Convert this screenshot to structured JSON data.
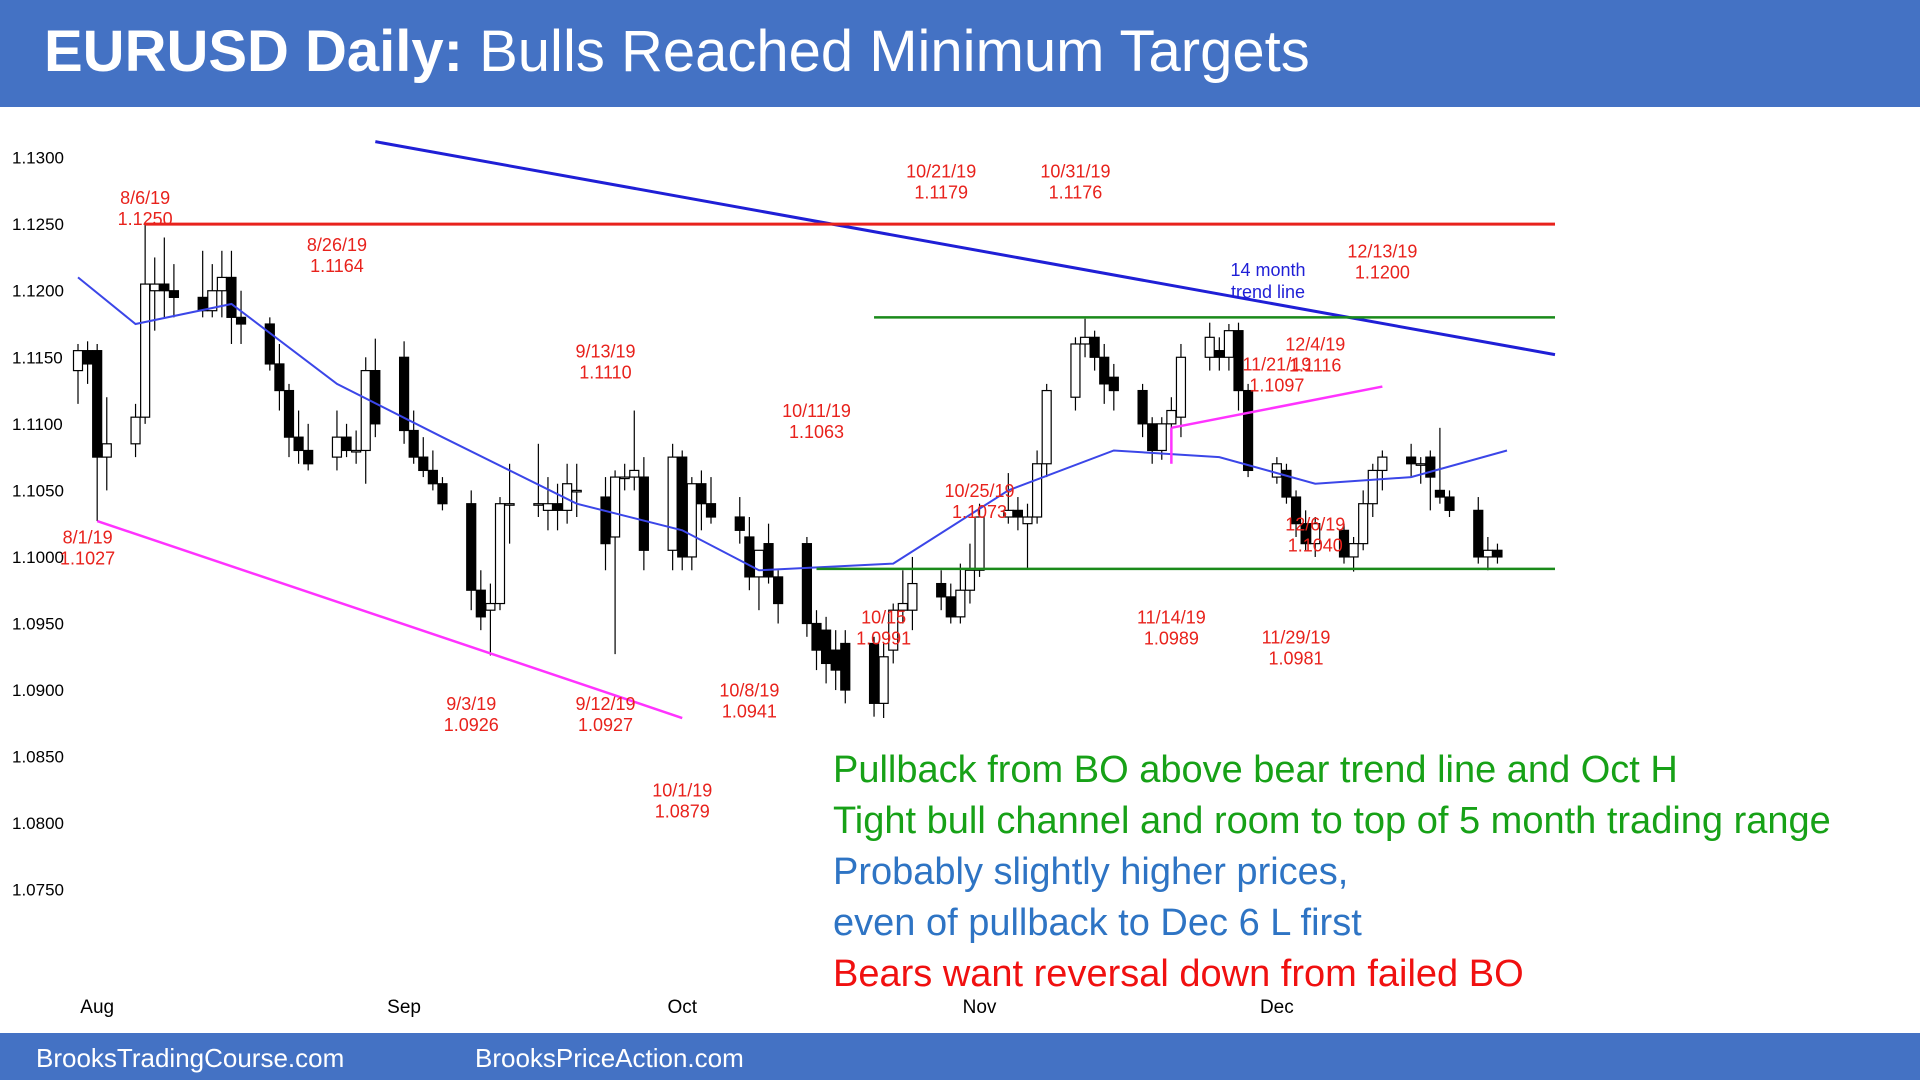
{
  "header": {
    "title_bold": "EURUSD Daily:",
    "title_rest": "Bulls Reached Minimum Targets"
  },
  "footer": {
    "left": "BrooksTradingCourse.com",
    "right": "BrooksPriceAction.com"
  },
  "colors": {
    "banner": "#4472c4",
    "annotation": "#e8221c",
    "trend_line": "#1f1fd6",
    "support_line": "#ff33ff",
    "range_line": "#1a8a1a",
    "ema": "#3b46e8",
    "green_text": "#17a117",
    "blue_text": "#2e74c4",
    "red_text": "#f01010"
  },
  "chart_data": {
    "type": "candlestick",
    "instrument": "EURUSD",
    "timeframe": "Daily",
    "ylim": [
      1.0725,
      1.132
    ],
    "xlim": [
      "2019-07-30",
      "2019-12-31"
    ],
    "y_ticks": [
      "1.1300",
      "1.1250",
      "1.1200",
      "1.1150",
      "1.1100",
      "1.1050",
      "1.1000",
      "1.0950",
      "1.0900",
      "1.0850",
      "1.0800",
      "1.0750"
    ],
    "x_ticks": [
      {
        "label": "Aug",
        "date": "2019-08-01"
      },
      {
        "label": "Sep",
        "date": "2019-09-02"
      },
      {
        "label": "Oct",
        "date": "2019-10-01"
      },
      {
        "label": "Nov",
        "date": "2019-11-01"
      },
      {
        "label": "Dec",
        "date": "2019-12-02"
      }
    ],
    "candles": [
      {
        "date": "2019-07-30",
        "o": 1.114,
        "h": 1.116,
        "l": 1.1115,
        "c": 1.1155
      },
      {
        "date": "2019-07-31",
        "o": 1.1155,
        "h": 1.1162,
        "l": 1.113,
        "c": 1.1145
      },
      {
        "date": "2019-08-01",
        "o": 1.1155,
        "h": 1.116,
        "l": 1.1027,
        "c": 1.1075
      },
      {
        "date": "2019-08-02",
        "o": 1.1075,
        "h": 1.112,
        "l": 1.105,
        "c": 1.1085
      },
      {
        "date": "2019-08-05",
        "o": 1.1085,
        "h": 1.1115,
        "l": 1.1075,
        "c": 1.1105
      },
      {
        "date": "2019-08-06",
        "o": 1.1105,
        "h": 1.125,
        "l": 1.11,
        "c": 1.1205
      },
      {
        "date": "2019-08-07",
        "o": 1.12,
        "h": 1.1225,
        "l": 1.117,
        "c": 1.1205
      },
      {
        "date": "2019-08-08",
        "o": 1.1205,
        "h": 1.124,
        "l": 1.118,
        "c": 1.12
      },
      {
        "date": "2019-08-09",
        "o": 1.12,
        "h": 1.122,
        "l": 1.118,
        "c": 1.1195
      },
      {
        "date": "2019-08-12",
        "o": 1.1195,
        "h": 1.123,
        "l": 1.118,
        "c": 1.1185
      },
      {
        "date": "2019-08-13",
        "o": 1.1185,
        "h": 1.122,
        "l": 1.118,
        "c": 1.12
      },
      {
        "date": "2019-08-14",
        "o": 1.12,
        "h": 1.123,
        "l": 1.118,
        "c": 1.121
      },
      {
        "date": "2019-08-15",
        "o": 1.121,
        "h": 1.123,
        "l": 1.116,
        "c": 1.118
      },
      {
        "date": "2019-08-16",
        "o": 1.118,
        "h": 1.12,
        "l": 1.116,
        "c": 1.1175
      },
      {
        "date": "2019-08-19",
        "o": 1.1175,
        "h": 1.118,
        "l": 1.114,
        "c": 1.1145
      },
      {
        "date": "2019-08-20",
        "o": 1.1145,
        "h": 1.116,
        "l": 1.111,
        "c": 1.1125
      },
      {
        "date": "2019-08-21",
        "o": 1.1125,
        "h": 1.113,
        "l": 1.1075,
        "c": 1.109
      },
      {
        "date": "2019-08-22",
        "o": 1.109,
        "h": 1.111,
        "l": 1.107,
        "c": 1.108
      },
      {
        "date": "2019-08-23",
        "o": 1.108,
        "h": 1.11,
        "l": 1.1065,
        "c": 1.107
      },
      {
        "date": "2019-08-26",
        "o": 1.1075,
        "h": 1.111,
        "l": 1.1065,
        "c": 1.109
      },
      {
        "date": "2019-08-27",
        "o": 1.109,
        "h": 1.11,
        "l": 1.1075,
        "c": 1.108
      },
      {
        "date": "2019-08-28",
        "o": 1.108,
        "h": 1.1095,
        "l": 1.107,
        "c": 1.108
      },
      {
        "date": "2019-08-29",
        "o": 1.108,
        "h": 1.115,
        "l": 1.1055,
        "c": 1.114
      },
      {
        "date": "2019-08-30",
        "o": 1.114,
        "h": 1.1164,
        "l": 1.109,
        "c": 1.11
      },
      {
        "date": "2019-09-02",
        "o": 1.115,
        "h": 1.1162,
        "l": 1.1085,
        "c": 1.1095
      },
      {
        "date": "2019-09-03",
        "o": 1.1095,
        "h": 1.111,
        "l": 1.107,
        "c": 1.1075
      },
      {
        "date": "2019-09-04",
        "o": 1.1075,
        "h": 1.109,
        "l": 1.106,
        "c": 1.1065
      },
      {
        "date": "2019-09-05",
        "o": 1.1065,
        "h": 1.108,
        "l": 1.105,
        "c": 1.1055
      },
      {
        "date": "2019-09-06",
        "o": 1.1055,
        "h": 1.106,
        "l": 1.1035,
        "c": 1.104
      },
      {
        "date": "2019-09-09",
        "o": 1.104,
        "h": 1.105,
        "l": 1.096,
        "c": 1.0975
      },
      {
        "date": "2019-09-10",
        "o": 1.0975,
        "h": 1.099,
        "l": 1.0945,
        "c": 1.0955
      },
      {
        "date": "2019-09-11",
        "o": 1.096,
        "h": 1.098,
        "l": 1.0926,
        "c": 1.0965
      },
      {
        "date": "2019-09-12",
        "o": 1.0965,
        "h": 1.1045,
        "l": 1.096,
        "c": 1.104
      },
      {
        "date": "2019-09-13",
        "o": 1.104,
        "h": 1.107,
        "l": 1.101,
        "c": 1.104
      },
      {
        "date": "2019-09-16",
        "o": 1.104,
        "h": 1.1085,
        "l": 1.103,
        "c": 1.104
      },
      {
        "date": "2019-09-17",
        "o": 1.1035,
        "h": 1.106,
        "l": 1.102,
        "c": 1.104
      },
      {
        "date": "2019-09-18",
        "o": 1.104,
        "h": 1.1055,
        "l": 1.102,
        "c": 1.1035
      },
      {
        "date": "2019-09-19",
        "o": 1.1035,
        "h": 1.107,
        "l": 1.1025,
        "c": 1.1055
      },
      {
        "date": "2019-09-20",
        "o": 1.105,
        "h": 1.107,
        "l": 1.103,
        "c": 1.105
      },
      {
        "date": "2019-09-23",
        "o": 1.1045,
        "h": 1.106,
        "l": 1.099,
        "c": 1.101
      },
      {
        "date": "2019-09-24",
        "o": 1.1015,
        "h": 1.1065,
        "l": 1.0927,
        "c": 1.106
      },
      {
        "date": "2019-09-25",
        "o": 1.106,
        "h": 1.107,
        "l": 1.105,
        "c": 1.106
      },
      {
        "date": "2019-09-26",
        "o": 1.106,
        "h": 1.111,
        "l": 1.105,
        "c": 1.1065
      },
      {
        "date": "2019-09-27",
        "o": 1.106,
        "h": 1.1075,
        "l": 1.099,
        "c": 1.1005
      },
      {
        "date": "2019-09-30",
        "o": 1.1005,
        "h": 1.1085,
        "l": 1.099,
        "c": 1.1075
      },
      {
        "date": "2019-10-01",
        "o": 1.1075,
        "h": 1.108,
        "l": 1.099,
        "c": 1.1
      },
      {
        "date": "2019-10-02",
        "o": 1.1,
        "h": 1.106,
        "l": 1.099,
        "c": 1.1055
      },
      {
        "date": "2019-10-03",
        "o": 1.1055,
        "h": 1.1065,
        "l": 1.102,
        "c": 1.104
      },
      {
        "date": "2019-10-04",
        "o": 1.104,
        "h": 1.106,
        "l": 1.1025,
        "c": 1.103
      },
      {
        "date": "2019-10-07",
        "o": 1.103,
        "h": 1.1045,
        "l": 1.101,
        "c": 1.102
      },
      {
        "date": "2019-10-08",
        "o": 1.1015,
        "h": 1.103,
        "l": 1.0975,
        "c": 1.0985
      },
      {
        "date": "2019-10-09",
        "o": 1.0985,
        "h": 1.1,
        "l": 1.096,
        "c": 1.1005
      },
      {
        "date": "2019-10-10",
        "o": 1.101,
        "h": 1.1025,
        "l": 1.098,
        "c": 1.0985
      },
      {
        "date": "2019-10-11",
        "o": 1.0985,
        "h": 1.099,
        "l": 1.095,
        "c": 1.0965
      },
      {
        "date": "2019-10-14",
        "o": 1.101,
        "h": 1.1015,
        "l": 1.094,
        "c": 1.095
      },
      {
        "date": "2019-10-15",
        "o": 1.095,
        "h": 1.096,
        "l": 1.0915,
        "c": 1.093
      },
      {
        "date": "2019-10-16",
        "o": 1.0945,
        "h": 1.0955,
        "l": 1.0905,
        "c": 1.092
      },
      {
        "date": "2019-10-17",
        "o": 1.093,
        "h": 1.0945,
        "l": 1.09,
        "c": 1.0915
      },
      {
        "date": "2019-10-18",
        "o": 1.0935,
        "h": 1.0945,
        "l": 1.089,
        "c": 1.09
      },
      {
        "date": "2019-10-21",
        "o": 1.0935,
        "h": 1.094,
        "l": 1.088,
        "c": 1.089
      },
      {
        "date": "2019-10-22",
        "o": 1.089,
        "h": 1.0935,
        "l": 1.0879,
        "c": 1.0925
      },
      {
        "date": "2019-10-23",
        "o": 1.093,
        "h": 1.0965,
        "l": 1.092,
        "c": 1.096
      },
      {
        "date": "2019-10-24",
        "o": 1.096,
        "h": 1.099,
        "l": 1.095,
        "c": 1.0965
      },
      {
        "date": "2019-10-25",
        "o": 1.096,
        "h": 1.1,
        "l": 1.0945,
        "c": 1.098
      },
      {
        "date": "2019-10-28",
        "o": 1.098,
        "h": 1.099,
        "l": 1.096,
        "c": 1.097
      },
      {
        "date": "2019-10-29",
        "o": 1.097,
        "h": 1.098,
        "l": 1.095,
        "c": 1.0955
      },
      {
        "date": "2019-10-30",
        "o": 1.0955,
        "h": 1.0995,
        "l": 1.095,
        "c": 1.0975
      },
      {
        "date": "2019-10-31",
        "o": 1.0975,
        "h": 1.101,
        "l": 1.0965,
        "c": 1.099
      },
      {
        "date": "2019-11-01",
        "o": 1.099,
        "h": 1.104,
        "l": 1.0985,
        "c": 1.103
      },
      {
        "date": "2019-11-04",
        "o": 1.103,
        "h": 1.1063,
        "l": 1.1025,
        "c": 1.1035
      },
      {
        "date": "2019-11-05",
        "o": 1.1035,
        "h": 1.1045,
        "l": 1.102,
        "c": 1.103
      },
      {
        "date": "2019-11-06",
        "o": 1.1025,
        "h": 1.104,
        "l": 1.0991,
        "c": 1.103
      },
      {
        "date": "2019-11-07",
        "o": 1.103,
        "h": 1.108,
        "l": 1.1025,
        "c": 1.107
      },
      {
        "date": "2019-11-08",
        "o": 1.107,
        "h": 1.113,
        "l": 1.106,
        "c": 1.1125
      },
      {
        "date": "2019-11-11",
        "o": 1.112,
        "h": 1.1165,
        "l": 1.111,
        "c": 1.116
      },
      {
        "date": "2019-11-12",
        "o": 1.116,
        "h": 1.1179,
        "l": 1.115,
        "c": 1.1165
      },
      {
        "date": "2019-11-13",
        "o": 1.1165,
        "h": 1.117,
        "l": 1.114,
        "c": 1.115
      },
      {
        "date": "2019-11-14",
        "o": 1.115,
        "h": 1.116,
        "l": 1.1115,
        "c": 1.113
      },
      {
        "date": "2019-11-15",
        "o": 1.1135,
        "h": 1.1145,
        "l": 1.111,
        "c": 1.1125
      },
      {
        "date": "2019-11-18",
        "o": 1.1125,
        "h": 1.113,
        "l": 1.109,
        "c": 1.11
      },
      {
        "date": "2019-11-19",
        "o": 1.11,
        "h": 1.1105,
        "l": 1.107,
        "c": 1.108
      },
      {
        "date": "2019-11-20",
        "o": 1.108,
        "h": 1.1105,
        "l": 1.1073,
        "c": 1.11
      },
      {
        "date": "2019-11-21",
        "o": 1.11,
        "h": 1.112,
        "l": 1.109,
        "c": 1.111
      },
      {
        "date": "2019-11-22",
        "o": 1.1105,
        "h": 1.116,
        "l": 1.109,
        "c": 1.115
      },
      {
        "date": "2019-11-25",
        "o": 1.115,
        "h": 1.1176,
        "l": 1.114,
        "c": 1.1165
      },
      {
        "date": "2019-11-26",
        "o": 1.1155,
        "h": 1.1165,
        "l": 1.114,
        "c": 1.115
      },
      {
        "date": "2019-11-27",
        "o": 1.115,
        "h": 1.1175,
        "l": 1.114,
        "c": 1.117
      },
      {
        "date": "2019-11-28",
        "o": 1.117,
        "h": 1.1176,
        "l": 1.111,
        "c": 1.1125
      },
      {
        "date": "2019-11-29",
        "o": 1.1125,
        "h": 1.113,
        "l": 1.106,
        "c": 1.1065
      },
      {
        "date": "2019-12-02",
        "o": 1.106,
        "h": 1.1075,
        "l": 1.1055,
        "c": 1.107
      },
      {
        "date": "2019-12-03",
        "o": 1.1065,
        "h": 1.107,
        "l": 1.104,
        "c": 1.1045
      },
      {
        "date": "2019-12-04",
        "o": 1.1045,
        "h": 1.105,
        "l": 1.1015,
        "c": 1.1025
      },
      {
        "date": "2019-12-05",
        "o": 1.1025,
        "h": 1.1035,
        "l": 1.1005,
        "c": 1.101
      },
      {
        "date": "2019-12-06",
        "o": 1.101,
        "h": 1.103,
        "l": 1.1,
        "c": 1.1025
      },
      {
        "date": "2019-12-09",
        "o": 1.102,
        "h": 1.1025,
        "l": 1.0995,
        "c": 1.1
      },
      {
        "date": "2019-12-10",
        "o": 1.1,
        "h": 1.1015,
        "l": 1.0989,
        "c": 1.101
      },
      {
        "date": "2019-12-11",
        "o": 1.101,
        "h": 1.105,
        "l": 1.1005,
        "c": 1.104
      },
      {
        "date": "2019-12-12",
        "o": 1.104,
        "h": 1.107,
        "l": 1.103,
        "c": 1.1065
      },
      {
        "date": "2019-12-13",
        "o": 1.1065,
        "h": 1.108,
        "l": 1.105,
        "c": 1.1075
      },
      {
        "date": "2019-12-16",
        "o": 1.1075,
        "h": 1.1085,
        "l": 1.106,
        "c": 1.107
      },
      {
        "date": "2019-12-17",
        "o": 1.107,
        "h": 1.1075,
        "l": 1.1055,
        "c": 1.107
      },
      {
        "date": "2019-12-18",
        "o": 1.1075,
        "h": 1.108,
        "l": 1.1035,
        "c": 1.106
      },
      {
        "date": "2019-12-19",
        "o": 1.105,
        "h": 1.1097,
        "l": 1.104,
        "c": 1.1045
      },
      {
        "date": "2019-12-20",
        "o": 1.1045,
        "h": 1.105,
        "l": 1.103,
        "c": 1.1035
      },
      {
        "date": "2019-12-23",
        "o": 1.1035,
        "h": 1.1045,
        "l": 1.0995,
        "c": 1.1
      },
      {
        "date": "2019-12-24",
        "o": 1.1,
        "h": 1.1015,
        "l": 1.099,
        "c": 1.1005
      },
      {
        "date": "2019-12-25",
        "o": 1.1005,
        "h": 1.101,
        "l": 1.0995,
        "c": 1.1
      }
    ],
    "ema": [
      {
        "date": "2019-07-30",
        "v": 1.121
      },
      {
        "date": "2019-08-05",
        "v": 1.1175
      },
      {
        "date": "2019-08-15",
        "v": 1.119
      },
      {
        "date": "2019-08-26",
        "v": 1.113
      },
      {
        "date": "2019-09-06",
        "v": 1.109
      },
      {
        "date": "2019-09-20",
        "v": 1.104
      },
      {
        "date": "2019-10-01",
        "v": 1.102
      },
      {
        "date": "2019-10-09",
        "v": 1.099
      },
      {
        "date": "2019-10-23",
        "v": 1.0995
      },
      {
        "date": "2019-11-04",
        "v": 1.105
      },
      {
        "date": "2019-11-15",
        "v": 1.108
      },
      {
        "date": "2019-11-26",
        "v": 1.1075
      },
      {
        "date": "2019-12-06",
        "v": 1.1055
      },
      {
        "date": "2019-12-16",
        "v": 1.106
      },
      {
        "date": "2019-12-26",
        "v": 1.108
      }
    ],
    "lines": [
      {
        "name": "14 month trend line",
        "kind": "trend_line",
        "x1": "2019-08-30",
        "y1": 1.1312,
        "x2": "2019-12-31",
        "y2": 1.1152
      },
      {
        "kind": "resistance",
        "x1": "2019-08-06",
        "y1": 1.125,
        "x2": "2019-12-31",
        "y2": 1.125
      },
      {
        "kind": "range_top",
        "x1": "2019-10-21",
        "y1": 1.118,
        "x2": "2019-12-31",
        "y2": 1.118
      },
      {
        "kind": "range_bottom",
        "x1": "2019-10-15",
        "y1": 1.0991,
        "x2": "2019-12-31",
        "y2": 1.0991
      },
      {
        "kind": "bear_channel_low",
        "x1": "2019-08-01",
        "y1": 1.1027,
        "x2": "2019-10-01",
        "y2": 1.0879
      },
      {
        "kind": "bull_channel",
        "x1": "2019-11-21",
        "y1": 1.1097,
        "x2": "2019-12-13",
        "y2": 1.1128
      }
    ],
    "annotations": [
      {
        "date_label": "8/6/19",
        "price": "1.1250",
        "x": "2019-08-06",
        "y": 1.1265
      },
      {
        "date_label": "8/1/19",
        "price": "1.1027",
        "x": "2019-07-31",
        "y": 1.101
      },
      {
        "date_label": "8/26/19",
        "price": "1.1164",
        "x": "2019-08-26",
        "y": 1.123
      },
      {
        "date_label": "9/3/19",
        "price": "1.0926",
        "x": "2019-09-09",
        "y": 1.0885
      },
      {
        "date_label": "9/12/19",
        "price": "1.0927",
        "x": "2019-09-23",
        "y": 1.0885
      },
      {
        "date_label": "9/13/19",
        "price": "1.1110",
        "x": "2019-09-23",
        "y": 1.115
      },
      {
        "date_label": "10/1/19",
        "price": "1.0879",
        "x": "2019-10-01",
        "y": 1.082
      },
      {
        "date_label": "10/8/19",
        "price": "1.0941",
        "x": "2019-10-08",
        "y": 1.0895
      },
      {
        "date_label": "10/11/19",
        "price": "1.1063",
        "x": "2019-10-15",
        "y": 1.1105
      },
      {
        "date_label": "10/15",
        "price": "1.0991",
        "x": "2019-10-22",
        "y": 1.095
      },
      {
        "date_label": "10/21/19",
        "price": "1.1179",
        "x": "2019-10-28",
        "y": 1.1285
      },
      {
        "date_label": "10/25/19",
        "price": "1.1073",
        "x": "2019-11-01",
        "y": 1.1045
      },
      {
        "date_label": "10/31/19",
        "price": "1.1176",
        "x": "2019-11-11",
        "y": 1.1285
      },
      {
        "date_label": "11/14/19",
        "price": "1.0989",
        "x": "2019-11-21",
        "y": 1.095
      },
      {
        "date_label": "11/21/19",
        "price": "1.1097",
        "x": "2019-12-02",
        "y": 1.114
      },
      {
        "date_label": "11/29/19",
        "price": "1.0981",
        "x": "2019-12-04",
        "y": 1.0935
      },
      {
        "date_label": "12/4/19",
        "price": "1.1116",
        "x": "2019-12-06",
        "y": 1.1155
      },
      {
        "date_label": "12/6/19",
        "price": "1.1040",
        "x": "2019-12-06",
        "y": 1.102
      },
      {
        "date_label": "12/13/19",
        "price": "1.1200",
        "x": "2019-12-13",
        "y": 1.1225
      }
    ],
    "trend_line_label": [
      "14 month",
      "trend line"
    ]
  },
  "commentary": [
    {
      "text": "Pullback from BO above bear trend line and Oct H",
      "color": "#17a117"
    },
    {
      "text": "Tight bull channel and room to top of 5 month trading range",
      "color": "#17a117"
    },
    {
      "text": "Probably slightly higher prices,",
      "color": "#2e74c4"
    },
    {
      "text": "even of pullback to Dec 6 L first",
      "color": "#2e74c4"
    },
    {
      "text": "Bears want reversal down from failed BO",
      "color": "#f01010"
    }
  ]
}
